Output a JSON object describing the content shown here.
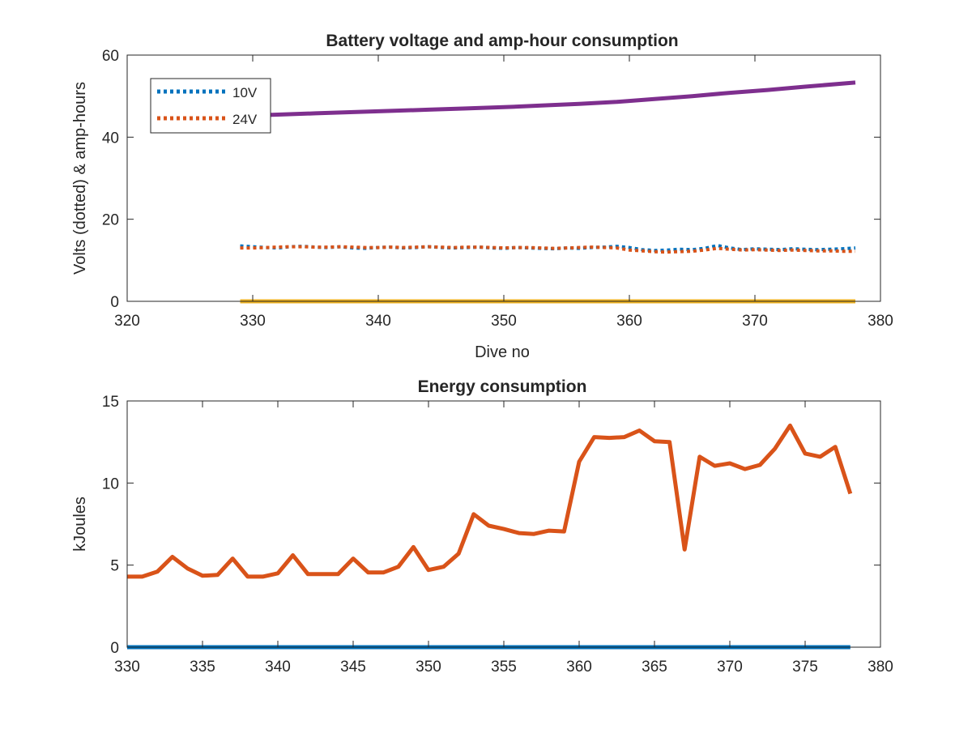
{
  "chart_data": [
    {
      "type": "line",
      "title": "Battery voltage and amp-hour consumption",
      "xlabel": "Dive no",
      "ylabel": "Volts (dotted) & amp-hours",
      "xlim": [
        320,
        380
      ],
      "ylim": [
        0,
        60
      ],
      "xticks": [
        320,
        330,
        340,
        350,
        360,
        370,
        380
      ],
      "yticks": [
        0,
        20,
        40,
        60
      ],
      "grid": false,
      "legend_position": "top-left",
      "series": [
        {
          "name": "10V",
          "style": "dotted",
          "color": "#0072BD",
          "x": [
            329,
            330,
            331,
            332,
            333,
            334,
            335,
            336,
            337,
            338,
            339,
            340,
            341,
            342,
            343,
            344,
            345,
            346,
            347,
            348,
            349,
            350,
            351,
            352,
            353,
            354,
            355,
            356,
            357,
            358,
            359,
            360,
            361,
            362,
            363,
            364,
            365,
            366,
            367,
            368,
            369,
            370,
            371,
            372,
            373,
            374,
            375,
            376,
            377,
            378
          ],
          "y": [
            13.5,
            13.3,
            13.1,
            13.0,
            13.3,
            13.4,
            13.2,
            13.1,
            13.3,
            13.0,
            12.9,
            13.1,
            13.2,
            13.0,
            13.1,
            13.3,
            13.1,
            13.0,
            13.1,
            13.2,
            13.0,
            12.9,
            13.1,
            13.0,
            12.9,
            12.8,
            13.0,
            12.9,
            13.1,
            13.2,
            13.4,
            13.1,
            12.6,
            12.4,
            12.5,
            12.7,
            12.6,
            12.9,
            13.6,
            13.0,
            12.6,
            12.8,
            12.7,
            12.6,
            12.8,
            12.7,
            12.6,
            12.7,
            12.8,
            13.0
          ]
        },
        {
          "name": "24V",
          "style": "dotted",
          "color": "#D95319",
          "x": [
            329,
            330,
            331,
            332,
            333,
            334,
            335,
            336,
            337,
            338,
            339,
            340,
            341,
            342,
            343,
            344,
            345,
            346,
            347,
            348,
            349,
            350,
            351,
            352,
            353,
            354,
            355,
            356,
            357,
            358,
            359,
            360,
            361,
            362,
            363,
            364,
            365,
            366,
            367,
            368,
            369,
            370,
            371,
            372,
            373,
            374,
            375,
            376,
            377,
            378
          ],
          "y": [
            13.0,
            13.0,
            13.1,
            13.2,
            13.3,
            13.3,
            13.2,
            13.2,
            13.3,
            13.2,
            13.1,
            13.1,
            13.2,
            13.1,
            13.2,
            13.3,
            13.2,
            13.1,
            13.2,
            13.2,
            13.1,
            13.0,
            13.1,
            13.1,
            13.0,
            12.9,
            13.0,
            13.1,
            13.2,
            13.1,
            13.0,
            12.5,
            12.3,
            12.1,
            12.0,
            12.1,
            12.2,
            12.5,
            12.9,
            12.7,
            12.5,
            12.6,
            12.5,
            12.4,
            12.5,
            12.4,
            12.3,
            12.3,
            12.2,
            12.2
          ]
        },
        {
          "style": "solid",
          "color": "#EDB120",
          "x": [
            329,
            378
          ],
          "y": [
            0,
            0
          ]
        },
        {
          "style": "solid",
          "color": "#7E2F8E",
          "x": [
            329,
            332,
            335,
            338,
            341,
            344,
            347,
            350,
            353,
            356,
            359,
            362,
            365,
            368,
            371,
            374,
            378
          ],
          "y": [
            45.2,
            45.5,
            45.8,
            46.1,
            46.4,
            46.7,
            47.0,
            47.3,
            47.7,
            48.1,
            48.6,
            49.3,
            50.0,
            50.8,
            51.5,
            52.3,
            53.3
          ]
        }
      ]
    },
    {
      "type": "line",
      "title": "Energy consumption",
      "xlabel": "",
      "ylabel": "kJoules",
      "xlim": [
        330,
        380
      ],
      "ylim": [
        0,
        15
      ],
      "xticks": [
        330,
        335,
        340,
        345,
        350,
        355,
        360,
        365,
        370,
        375,
        380
      ],
      "yticks": [
        0,
        5,
        10,
        15
      ],
      "grid": false,
      "series": [
        {
          "style": "solid",
          "color": "#0072BD",
          "x": [
            330,
            378
          ],
          "y": [
            0,
            0
          ]
        },
        {
          "style": "solid",
          "color": "#D95319",
          "x": [
            330,
            331,
            332,
            333,
            334,
            335,
            336,
            337,
            338,
            339,
            340,
            341,
            342,
            343,
            344,
            345,
            346,
            347,
            348,
            349,
            350,
            351,
            352,
            353,
            354,
            355,
            356,
            357,
            358,
            359,
            360,
            361,
            362,
            363,
            364,
            365,
            366,
            367,
            368,
            369,
            370,
            371,
            372,
            373,
            374,
            375,
            376,
            377,
            378
          ],
          "y": [
            4.3,
            4.3,
            4.6,
            5.5,
            4.8,
            4.35,
            4.4,
            5.4,
            4.3,
            4.3,
            4.5,
            5.6,
            4.45,
            4.45,
            4.45,
            5.4,
            4.55,
            4.55,
            4.9,
            6.1,
            4.7,
            4.9,
            5.7,
            8.1,
            7.4,
            7.2,
            6.95,
            6.9,
            7.1,
            7.05,
            11.3,
            12.8,
            12.75,
            12.8,
            13.2,
            12.55,
            12.5,
            5.95,
            11.6,
            11.05,
            11.2,
            10.85,
            11.1,
            12.1,
            13.5,
            11.8,
            11.6,
            12.2,
            9.35
          ]
        }
      ]
    }
  ]
}
